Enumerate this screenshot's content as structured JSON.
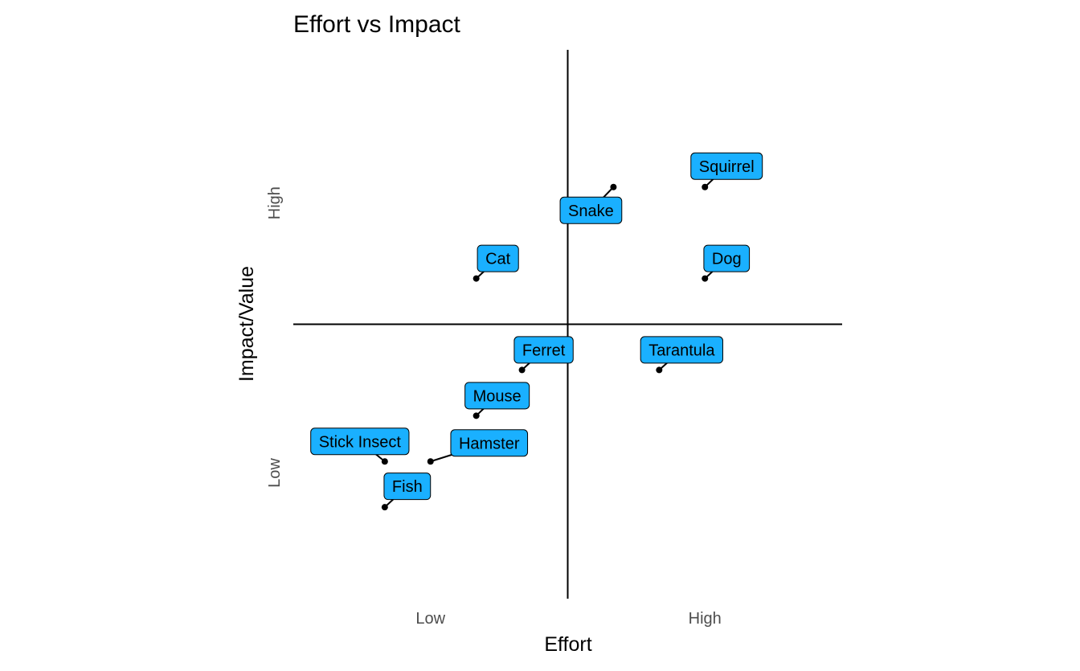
{
  "chart_data": {
    "type": "scatter",
    "title": "Effort vs Impact",
    "xlabel": "Effort",
    "ylabel": "Impact/Value",
    "xlim": [
      0,
      12
    ],
    "ylim": [
      0,
      12
    ],
    "x_ticks": [
      {
        "value": 3,
        "label": "Low"
      },
      {
        "value": 9,
        "label": "High"
      }
    ],
    "y_ticks": [
      {
        "value": 2.75,
        "label": "Low"
      },
      {
        "value": 8.65,
        "label": "High"
      }
    ],
    "quadrant_lines": {
      "x": 6,
      "y": 6
    },
    "grid": false,
    "label_fill": "#1ab0ff",
    "point_color": "#000000",
    "points": [
      {
        "label": "Squirrel",
        "x": 9,
        "y": 9
      },
      {
        "label": "Snake",
        "x": 7,
        "y": 9
      },
      {
        "label": "Cat",
        "x": 4,
        "y": 7
      },
      {
        "label": "Dog",
        "x": 9,
        "y": 7
      },
      {
        "label": "Ferret",
        "x": 5,
        "y": 5
      },
      {
        "label": "Tarantula",
        "x": 8,
        "y": 5
      },
      {
        "label": "Mouse",
        "x": 4,
        "y": 4
      },
      {
        "label": "Stick Insect",
        "x": 2,
        "y": 3
      },
      {
        "label": "Hamster",
        "x": 3,
        "y": 3
      },
      {
        "label": "Fish",
        "x": 2,
        "y": 2
      }
    ]
  }
}
